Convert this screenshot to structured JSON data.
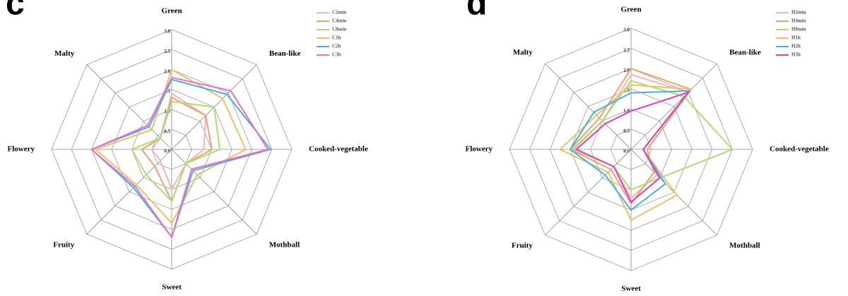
{
  "chart_data": [
    {
      "type": "radar",
      "panel_label": "c",
      "categories": [
        "Green",
        "Bean-like",
        "Cooked-vegetable",
        "Mothball",
        "Sweet",
        "Fruity",
        "Flowery",
        "Malty"
      ],
      "rlim": [
        0,
        3
      ],
      "rticks": [
        {
          "value": 0,
          "label": "0.0"
        },
        {
          "value": 0.5,
          "label": "0.5"
        },
        {
          "value": 1,
          "label": "1.0"
        },
        {
          "value": 1.5,
          "label": "1.5"
        },
        {
          "value": 2,
          "label": "2.0"
        },
        {
          "value": 2.5,
          "label": "2.5"
        },
        {
          "value": 3,
          "label": "3.0"
        }
      ],
      "series": [
        {
          "name": "C2min",
          "color": "#f4b6b6",
          "values": [
            1.4,
            1.2,
            0.8,
            0.5,
            1.0,
            0.4,
            0.5,
            0.4
          ]
        },
        {
          "name": "C4min",
          "color": "#f0a070",
          "values": [
            1.3,
            1.2,
            1.0,
            0.5,
            1.3,
            0.6,
            0.75,
            0.4
          ]
        },
        {
          "name": "C8min",
          "color": "#a8e070",
          "values": [
            1.2,
            1.5,
            1.2,
            0.5,
            1.3,
            0.9,
            1.0,
            0.4
          ]
        },
        {
          "name": "C1h",
          "color": "#f0c060",
          "values": [
            2.0,
            1.8,
            1.85,
            0.9,
            1.85,
            1.25,
            1.9,
            0.7
          ]
        },
        {
          "name": "C2h",
          "color": "#40b0f0",
          "values": [
            1.75,
            1.95,
            2.47,
            0.75,
            2.2,
            1.35,
            2.0,
            0.8
          ]
        },
        {
          "name": "C3h",
          "color": "#f070c0",
          "values": [
            1.8,
            2.08,
            2.4,
            0.7,
            2.2,
            1.3,
            2.0,
            0.85
          ]
        }
      ]
    },
    {
      "type": "radar",
      "panel_label": "d",
      "categories": [
        "Green",
        "Bean-like",
        "Cooked-vegetable",
        "Mothball",
        "Sweet",
        "Fruity",
        "Flowery",
        "Malty"
      ],
      "rlim": [
        0,
        3
      ],
      "rticks": [
        {
          "value": 0,
          "label": "0.0"
        },
        {
          "value": 0.5,
          "label": "0.5"
        },
        {
          "value": 1,
          "label": "1.0"
        },
        {
          "value": 1.5,
          "label": "1.5"
        },
        {
          "value": 2,
          "label": "2.0"
        },
        {
          "value": 2.5,
          "label": "2.5"
        },
        {
          "value": 3,
          "label": "3.0"
        }
      ],
      "series": [
        {
          "name": "H2min",
          "color": "#f4b6b6",
          "values": [
            1.85,
            2.0,
            0.3,
            0.9,
            1.2,
            0.6,
            1.4,
            1.0
          ]
        },
        {
          "name": "H4min",
          "color": "#f0a070",
          "values": [
            2.0,
            2.1,
            0.4,
            0.8,
            1.35,
            0.7,
            1.5,
            1.1
          ]
        },
        {
          "name": "H8min",
          "color": "#a8e070",
          "values": [
            1.7,
            1.85,
            2.5,
            1.0,
            1.0,
            0.6,
            1.45,
            1.0
          ]
        },
        {
          "name": "H1h",
          "color": "#f0c060",
          "values": [
            1.6,
            2.1,
            0.3,
            1.6,
            1.75,
            0.8,
            1.75,
            1.2
          ]
        },
        {
          "name": "H2h",
          "color": "#40b0f0",
          "values": [
            1.4,
            2.05,
            0.3,
            1.2,
            1.5,
            0.9,
            1.5,
            1.3
          ]
        },
        {
          "name": "H3h",
          "color": "#e040c0",
          "values": [
            0.95,
            2.0,
            0.3,
            1.0,
            1.3,
            0.6,
            1.35,
            0.9
          ]
        }
      ]
    }
  ]
}
